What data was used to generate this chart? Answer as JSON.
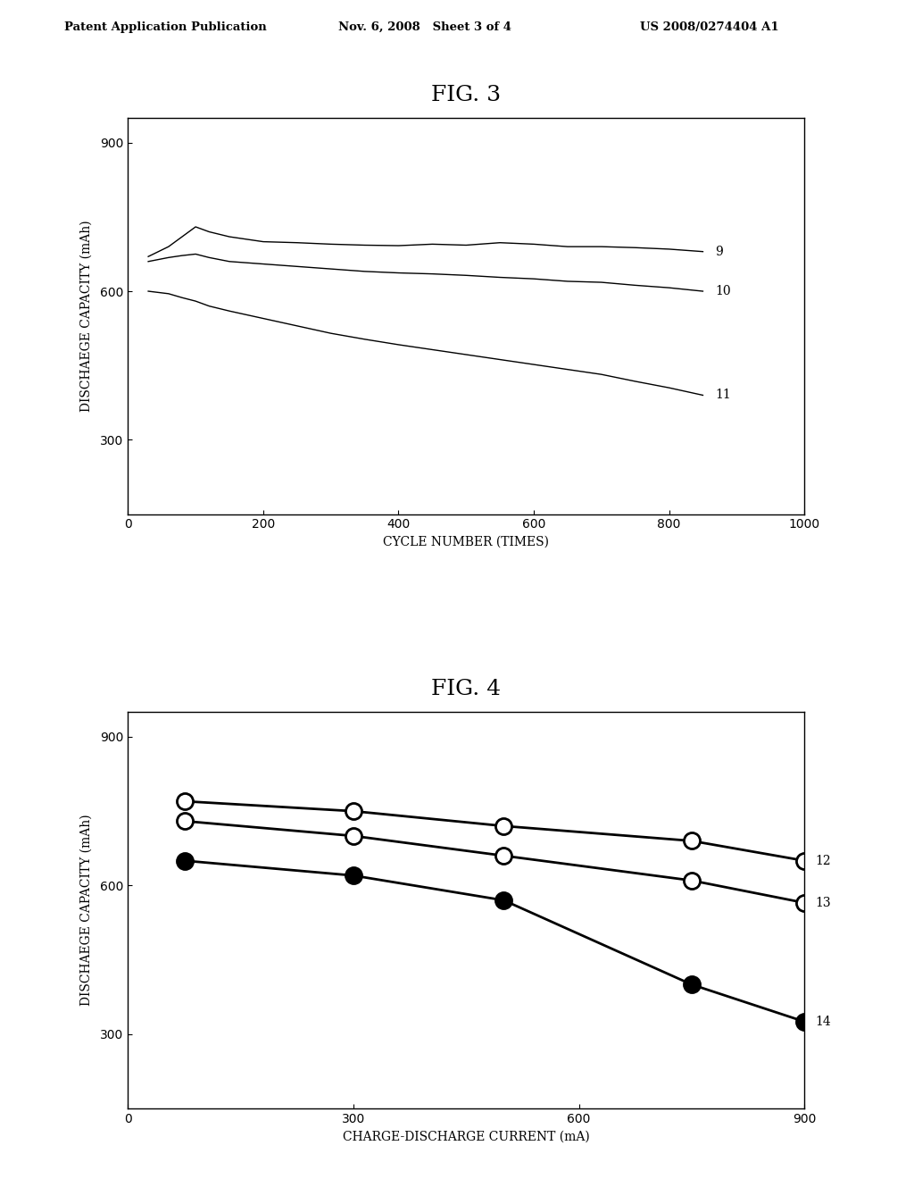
{
  "header_left": "Patent Application Publication",
  "header_mid": "Nov. 6, 2008   Sheet 3 of 4",
  "header_right": "US 2008/0274404 A1",
  "fig3": {
    "title": "FIG. 3",
    "xlabel": "CYCLE NUMBER (TIMES)",
    "ylabel": "DISCHAEGE CAPACITY (mAh)",
    "xlim": [
      0,
      1000
    ],
    "ylim": [
      150,
      950
    ],
    "yticks": [
      300,
      600,
      900
    ],
    "xticks": [
      0,
      200,
      400,
      600,
      800,
      1000
    ],
    "line9": {
      "label": "9",
      "x": [
        30,
        60,
        80,
        100,
        120,
        150,
        200,
        250,
        300,
        350,
        400,
        450,
        500,
        550,
        600,
        650,
        700,
        750,
        800,
        850
      ],
      "y": [
        670,
        690,
        710,
        730,
        720,
        710,
        700,
        698,
        695,
        693,
        692,
        695,
        693,
        698,
        695,
        690,
        690,
        688,
        685,
        680
      ]
    },
    "line10": {
      "label": "10",
      "x": [
        30,
        60,
        80,
        100,
        120,
        150,
        200,
        250,
        300,
        350,
        400,
        450,
        500,
        550,
        600,
        650,
        700,
        750,
        800,
        850
      ],
      "y": [
        660,
        668,
        672,
        675,
        668,
        660,
        655,
        650,
        645,
        640,
        637,
        635,
        632,
        628,
        625,
        620,
        618,
        612,
        607,
        600
      ]
    },
    "line11": {
      "label": "11",
      "x": [
        30,
        60,
        80,
        100,
        120,
        150,
        200,
        250,
        300,
        350,
        400,
        450,
        500,
        550,
        600,
        650,
        700,
        750,
        800,
        850
      ],
      "y": [
        600,
        595,
        587,
        580,
        570,
        560,
        545,
        530,
        515,
        503,
        492,
        482,
        472,
        462,
        452,
        442,
        432,
        418,
        405,
        390
      ]
    }
  },
  "fig4": {
    "title": "FIG. 4",
    "xlabel": "CHARGE-DISCHARGE CURRENT (mA)",
    "ylabel": "DISCHAEGE CAPACITY (mAh)",
    "xlim": [
      0,
      900
    ],
    "ylim": [
      150,
      950
    ],
    "yticks": [
      300,
      600,
      900
    ],
    "xticks": [
      0,
      300,
      600,
      900
    ],
    "line12": {
      "label": "12",
      "x": [
        75,
        300,
        500,
        750,
        900
      ],
      "y": [
        770,
        750,
        720,
        690,
        650
      ],
      "filled": false
    },
    "line13": {
      "label": "13",
      "x": [
        75,
        300,
        500,
        750,
        900
      ],
      "y": [
        730,
        700,
        660,
        610,
        565
      ],
      "filled": false
    },
    "line14": {
      "label": "14",
      "x": [
        75,
        300,
        500,
        750,
        900
      ],
      "y": [
        650,
        620,
        570,
        400,
        325
      ],
      "filled": true
    }
  }
}
